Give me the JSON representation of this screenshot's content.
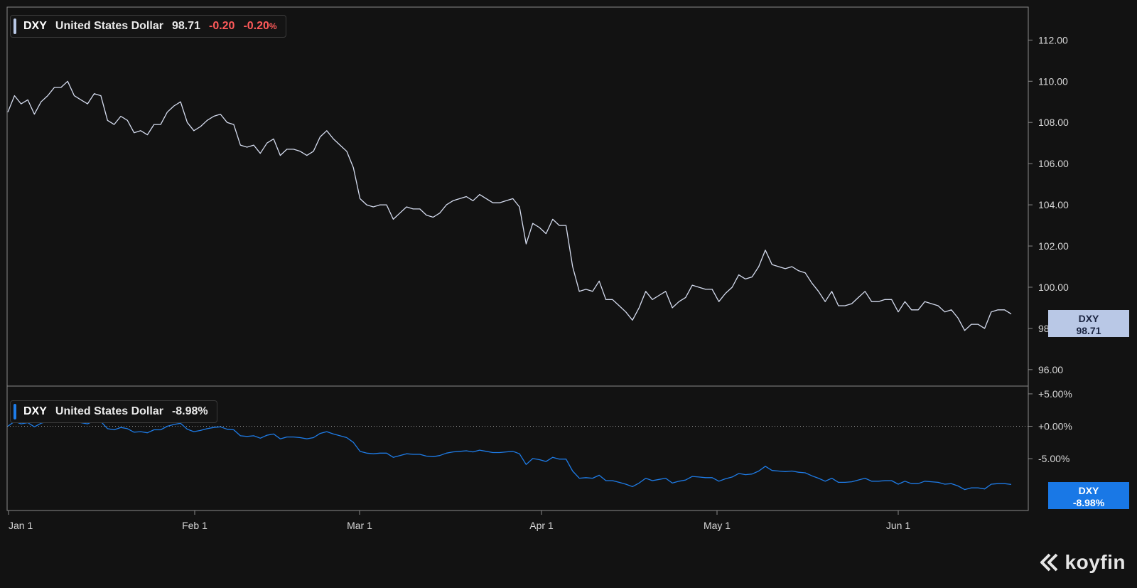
{
  "top_legend": {
    "symbol": "DXY",
    "name": "United States Dollar",
    "last": "98.71",
    "change": "-0.20",
    "change_pct": "-0.20",
    "pct_sign": "%"
  },
  "bottom_legend": {
    "symbol": "DXY",
    "name": "United States Dollar",
    "perf": "-8.98%"
  },
  "top_tag": {
    "symbol": "DXY",
    "value": "98.71"
  },
  "bottom_tag": {
    "symbol": "DXY",
    "value": "-8.98%"
  },
  "logo": {
    "text": "koyfin"
  },
  "colors": {
    "background": "#121212",
    "price_line": "#d5dcef",
    "perf_line": "#1e7ce8",
    "negative": "#ff5a5a",
    "price_tag": "#b9c8e6",
    "perf_tag": "#1978e6"
  },
  "chart_data": [
    {
      "type": "line",
      "series": [
        {
          "name": "DXY",
          "values": [
            108.5,
            109.3,
            108.9,
            109.1,
            108.4,
            109.0,
            109.3,
            109.7,
            109.7,
            110.0,
            109.3,
            109.1,
            108.9,
            109.4,
            109.3,
            108.1,
            107.9,
            108.3,
            108.1,
            107.5,
            107.6,
            107.4,
            107.9,
            107.9,
            108.5,
            108.8,
            109.0,
            108.0,
            107.6,
            107.8,
            108.1,
            108.3,
            108.4,
            108.0,
            107.9,
            106.9,
            106.8,
            106.9,
            106.5,
            107.0,
            107.2,
            106.4,
            106.7,
            106.7,
            106.6,
            106.4,
            106.6,
            107.3,
            107.6,
            107.2,
            106.9,
            106.6,
            105.8,
            104.3,
            104.0,
            103.9,
            104.0,
            104.0,
            103.3,
            103.6,
            103.9,
            103.8,
            103.8,
            103.5,
            103.4,
            103.6,
            104.0,
            104.2,
            104.3,
            104.4,
            104.2,
            104.5,
            104.3,
            104.1,
            104.1,
            104.2,
            104.3,
            103.9,
            102.1,
            103.1,
            102.9,
            102.6,
            103.3,
            103.0,
            103.0,
            101.0,
            99.8,
            99.9,
            99.8,
            100.3,
            99.4,
            99.4,
            99.1,
            98.8,
            98.4,
            99.0,
            99.8,
            99.4,
            99.6,
            99.8,
            99.0,
            99.3,
            99.5,
            100.1,
            100.0,
            99.9,
            99.9,
            99.3,
            99.7,
            100.0,
            100.6,
            100.4,
            100.5,
            101.0,
            101.8,
            101.1,
            101.0,
            100.9,
            101.0,
            100.8,
            100.7,
            100.2,
            99.8,
            99.3,
            99.8,
            99.1,
            99.1,
            99.2,
            99.5,
            99.8,
            99.3,
            99.3,
            99.4,
            99.4,
            98.8,
            99.3,
            98.9,
            98.9,
            99.3,
            99.2,
            99.1,
            98.8,
            98.9,
            98.5,
            97.9,
            98.2,
            98.2,
            98.0,
            98.8,
            98.9,
            98.9,
            98.7
          ]
        }
      ],
      "y_ticks": [
        "112.00",
        "110.00",
        "108.00",
        "106.00",
        "104.00",
        "102.00",
        "100.00",
        "98.00",
        "96.00"
      ],
      "ylim": [
        95.2,
        113.6
      ]
    },
    {
      "type": "line",
      "series": [
        {
          "name": "DXY",
          "values": [
            0.0,
            0.74,
            0.37,
            0.55,
            -0.09,
            0.46,
            0.74,
            1.11,
            1.11,
            1.38,
            0.74,
            0.55,
            0.37,
            0.83,
            0.74,
            -0.37,
            -0.55,
            -0.18,
            -0.37,
            -0.92,
            -0.83,
            -1.01,
            -0.55,
            -0.55,
            0.0,
            0.28,
            0.46,
            -0.46,
            -0.83,
            -0.65,
            -0.37,
            -0.18,
            -0.09,
            -0.46,
            -0.55,
            -1.47,
            -1.57,
            -1.47,
            -1.84,
            -1.38,
            -1.2,
            -1.94,
            -1.66,
            -1.66,
            -1.75,
            -1.94,
            -1.75,
            -1.11,
            -0.83,
            -1.2,
            -1.47,
            -1.75,
            -2.49,
            -3.87,
            -4.15,
            -4.24,
            -4.15,
            -4.15,
            -4.79,
            -4.52,
            -4.24,
            -4.33,
            -4.33,
            -4.61,
            -4.7,
            -4.52,
            -4.15,
            -3.96,
            -3.87,
            -3.78,
            -3.96,
            -3.69,
            -3.87,
            -4.06,
            -4.06,
            -3.96,
            -3.87,
            -4.24,
            -5.9,
            -4.98,
            -5.16,
            -5.44,
            -4.79,
            -5.07,
            -5.07,
            -6.91,
            -8.02,
            -7.93,
            -8.02,
            -7.56,
            -8.39,
            -8.39,
            -8.66,
            -8.94,
            -9.31,
            -8.76,
            -8.02,
            -8.39,
            -8.2,
            -8.02,
            -8.76,
            -8.48,
            -8.29,
            -7.74,
            -7.83,
            -7.93,
            -7.93,
            -8.48,
            -8.11,
            -7.83,
            -7.28,
            -7.47,
            -7.37,
            -6.91,
            -6.18,
            -6.82,
            -6.91,
            -7.0,
            -6.91,
            -7.1,
            -7.19,
            -7.65,
            -8.02,
            -8.48,
            -8.02,
            -8.66,
            -8.66,
            -8.57,
            -8.29,
            -8.02,
            -8.48,
            -8.48,
            -8.39,
            -8.39,
            -8.94,
            -8.48,
            -8.85,
            -8.85,
            -8.48,
            -8.57,
            -8.66,
            -8.94,
            -8.85,
            -9.22,
            -9.77,
            -9.5,
            -9.5,
            -9.68,
            -8.94,
            -8.85,
            -8.85,
            -8.98
          ]
        }
      ],
      "y_ticks": [
        "+5.00%",
        "+0.00%",
        "-5.00%"
      ],
      "ylim": [
        -13,
        6.2
      ]
    }
  ],
  "x_labels": [
    "Jan 1",
    "Feb 1",
    "Mar 1",
    "Apr 1",
    "May 1",
    "Jun 1"
  ]
}
